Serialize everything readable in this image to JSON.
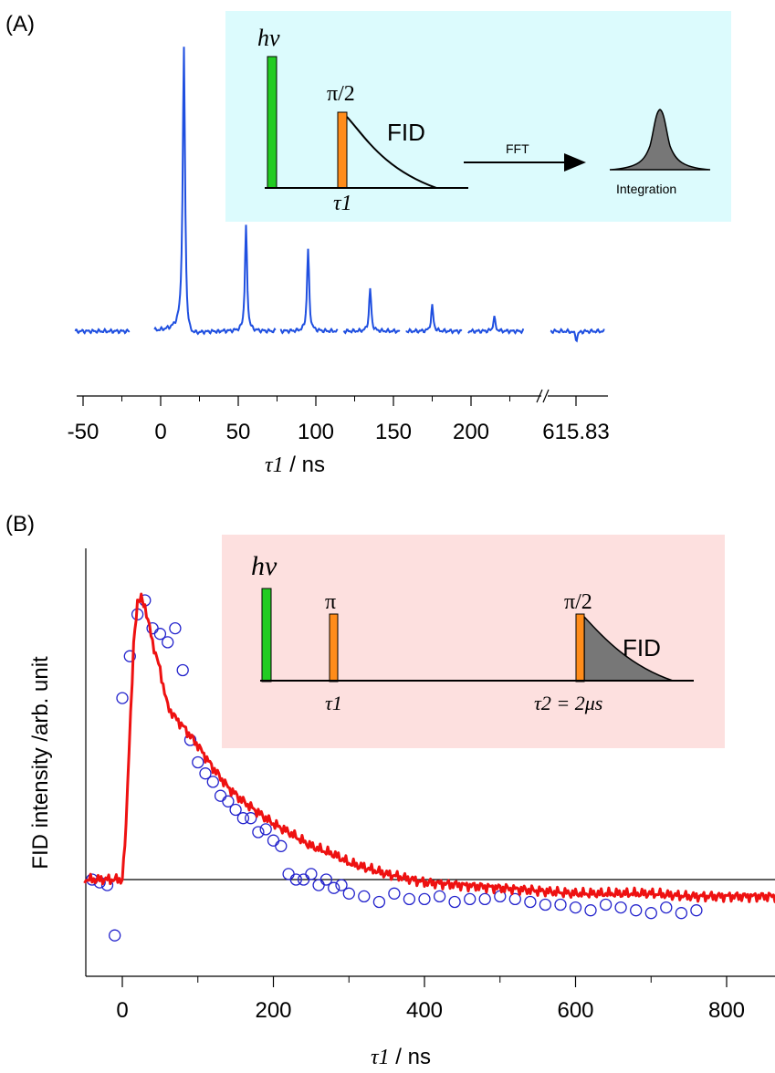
{
  "panel_a": {
    "label": "(A)",
    "inset": {
      "pump_label": "hν",
      "pulse_label": "π/2",
      "fid_label": "FID",
      "delay_label": "τ1",
      "fft_label": "FFT",
      "integration_label": "Integration",
      "background_color": "#dcfbfd"
    },
    "axis": {
      "ticks": [
        "-50",
        "0",
        "50",
        "100",
        "150",
        "200",
        "615.83"
      ],
      "xlabel_symbol": "τ1",
      "xlabel_unit": " / ns"
    }
  },
  "panel_b": {
    "label": "(B)",
    "inset": {
      "pump_label": "hν",
      "pi_label": "π",
      "pulse_label": "π/2",
      "fid_label": "FID",
      "delay1_label": "τ1",
      "delay2_label": "τ2 = 2μs",
      "background_color": "#fde0df"
    }
  },
  "colors": {
    "spectrum": "#1f4fe0",
    "simulation": "#ee1111",
    "markers": "#2222cc",
    "pump_pulse": "#22cc22",
    "mw_pulse": "#ff8c1a",
    "fid_fill": "#777777"
  },
  "chart_data": [
    {
      "type": "line",
      "panel": "A",
      "title": "",
      "xlabel": "τ1 / ns",
      "ylabel": "",
      "x_ticks": [
        "-50",
        "0",
        "50",
        "100",
        "150",
        "200",
        "615.83"
      ],
      "axis_break": "between 200 and 615.83",
      "series": [
        {
          "segments": [
            {
              "x_start": -55,
              "x_end": -20,
              "peak_x": null,
              "peak_height": 0
            },
            {
              "x_start": -4,
              "x_end": 37,
              "peak_x": 15,
              "peak_height": 1.0
            },
            {
              "x_start": 37,
              "x_end": 74,
              "peak_x": 55,
              "peak_height": 0.37
            },
            {
              "x_start": 77,
              "x_end": 114,
              "peak_x": 95,
              "peak_height": 0.29
            },
            {
              "x_start": 118,
              "x_end": 154,
              "peak_x": 135,
              "peak_height": 0.15
            },
            {
              "x_start": 158,
              "x_end": 194,
              "peak_x": 175,
              "peak_height": 0.09
            },
            {
              "x_start": 198,
              "x_end": 234,
              "peak_x": 215,
              "peak_height": 0.05
            },
            {
              "x_start": 600,
              "x_end": 633,
              "peak_x": 615.83,
              "peak_height": -0.03
            }
          ]
        }
      ]
    },
    {
      "type": "scatter",
      "panel": "B",
      "title": "",
      "xlabel": "τ1 / ns",
      "ylabel": "FID intensity /arb. unit",
      "xlim": [
        -50,
        870
      ],
      "ylim": [
        -0.45,
        1.1
      ],
      "x_ticks": [
        "0",
        "200",
        "400",
        "600",
        "800"
      ],
      "grid": false,
      "series": [
        {
          "kind": "markers",
          "x": [
            -40,
            -30,
            -20,
            -10,
            0,
            10,
            20,
            30,
            40,
            50,
            60,
            70,
            80,
            90,
            100,
            110,
            120,
            130,
            140,
            150,
            160,
            170,
            180,
            190,
            200,
            210,
            220,
            230,
            240,
            250,
            260,
            270,
            280,
            290,
            300,
            320,
            340,
            360,
            380,
            400,
            420,
            440,
            460,
            480,
            500,
            520,
            540,
            560,
            580,
            600,
            620,
            640,
            660,
            680,
            700,
            720,
            740,
            760
          ],
          "y": [
            0.0,
            -0.01,
            -0.02,
            -0.2,
            0.65,
            0.8,
            0.95,
            1.0,
            0.9,
            0.88,
            0.85,
            0.9,
            0.75,
            0.5,
            0.42,
            0.38,
            0.35,
            0.3,
            0.28,
            0.25,
            0.22,
            0.22,
            0.17,
            0.18,
            0.14,
            0.12,
            0.02,
            0.0,
            0.0,
            0.02,
            -0.02,
            0.0,
            -0.03,
            -0.02,
            -0.05,
            -0.06,
            -0.08,
            -0.05,
            -0.07,
            -0.07,
            -0.06,
            -0.08,
            -0.07,
            -0.07,
            -0.06,
            -0.07,
            -0.08,
            -0.09,
            -0.09,
            -0.1,
            -0.11,
            -0.09,
            -0.1,
            -0.11,
            -0.12,
            -0.1,
            -0.12,
            -0.11
          ]
        },
        {
          "kind": "line",
          "x": [
            -50,
            -20,
            0,
            5,
            15,
            20,
            25,
            30,
            40,
            50,
            60,
            70,
            80,
            100,
            120,
            140,
            160,
            180,
            200,
            220,
            250,
            280,
            300,
            350,
            400,
            450,
            500,
            550,
            600,
            650,
            700,
            750,
            800,
            870
          ],
          "y": [
            0.0,
            0.0,
            0.0,
            0.2,
            0.85,
            1.0,
            1.02,
            0.98,
            0.85,
            0.75,
            0.62,
            0.58,
            0.55,
            0.48,
            0.4,
            0.33,
            0.28,
            0.24,
            0.2,
            0.17,
            0.12,
            0.09,
            0.06,
            0.02,
            -0.01,
            -0.02,
            -0.03,
            -0.04,
            -0.05,
            -0.05,
            -0.05,
            -0.06,
            -0.06,
            -0.06
          ]
        }
      ]
    }
  ]
}
